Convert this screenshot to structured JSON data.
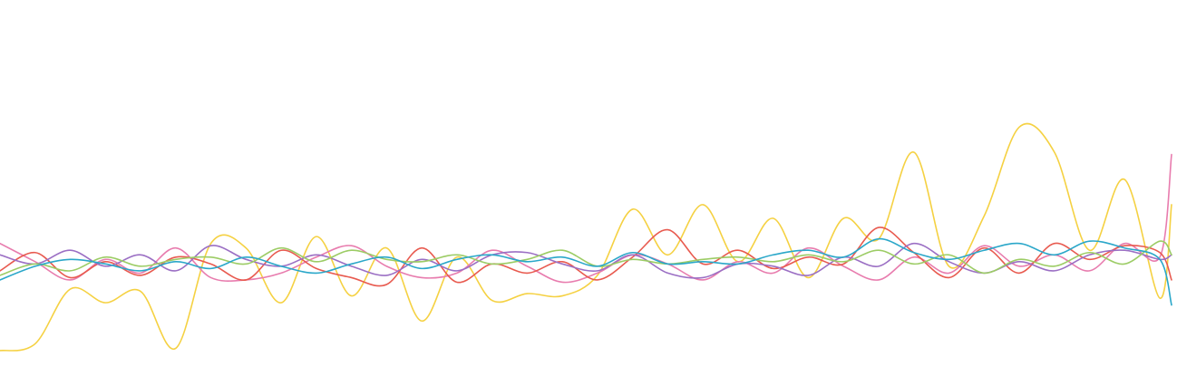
{
  "chart_data": {
    "type": "line",
    "title": "",
    "xlabel": "",
    "ylabel": "",
    "grid": false,
    "legend": "none",
    "xlim": [
      0,
      100
    ],
    "ylim": [
      -2,
      10
    ],
    "x": [
      0,
      3,
      6,
      9,
      12,
      15,
      18,
      21,
      24,
      27,
      30,
      33,
      36,
      39,
      42,
      45,
      48,
      51,
      54,
      57,
      60,
      63,
      66,
      69,
      72,
      75,
      78,
      81,
      84,
      87,
      90,
      93,
      96,
      99,
      100
    ],
    "series": [
      {
        "color": "#f5d142",
        "values": [
          -1.8,
          -1.5,
          0.9,
          0.3,
          0.8,
          -1.7,
          2.9,
          2.7,
          0.3,
          3.2,
          0.6,
          2.7,
          -0.5,
          2.3,
          0.4,
          0.7,
          0.6,
          1.5,
          4.4,
          2.4,
          4.6,
          2.1,
          4.0,
          1.4,
          4.0,
          3.1,
          6.9,
          1.9,
          4.1,
          8.0,
          6.9,
          2.6,
          5.7,
          0.5,
          4.6
        ]
      },
      {
        "color": "#e87cae",
        "values": [
          2.9,
          2.1,
          1.3,
          2.2,
          1.6,
          2.7,
          1.4,
          1.3,
          1.6,
          2.3,
          2.8,
          1.9,
          1.4,
          1.6,
          2.6,
          1.9,
          1.2,
          1.6,
          2.4,
          2.0,
          1.3,
          2.1,
          1.6,
          2.7,
          1.9,
          1.3,
          2.3,
          1.6,
          2.8,
          1.9,
          2.4,
          1.7,
          2.9,
          2.3,
          6.8
        ]
      },
      {
        "color": "#e85a4f",
        "values": [
          1.7,
          2.5,
          1.4,
          2.1,
          1.5,
          2.3,
          2.0,
          1.3,
          2.6,
          1.8,
          1.4,
          1.1,
          2.7,
          1.2,
          2.0,
          1.6,
          2.1,
          1.3,
          2.3,
          3.5,
          2.0,
          2.6,
          1.8,
          2.3,
          2.0,
          3.6,
          2.5,
          1.4,
          2.7,
          1.6,
          2.9,
          2.2,
          2.8,
          2.5,
          1.3
        ]
      },
      {
        "color": "#9b6fc4",
        "values": [
          2.4,
          2.0,
          2.6,
          1.9,
          2.4,
          1.7,
          2.8,
          2.2,
          1.9,
          2.4,
          1.9,
          1.5,
          2.2,
          1.7,
          2.4,
          2.5,
          2.0,
          1.7,
          2.4,
          1.6,
          1.4,
          2.0,
          1.9,
          1.5,
          2.3,
          1.9,
          2.9,
          2.1,
          1.6,
          2.1,
          1.7,
          2.4,
          2.6,
          2.2,
          2.4
        ]
      },
      {
        "color": "#9ccc65",
        "values": [
          1.5,
          2.0,
          1.7,
          2.3,
          1.9,
          2.2,
          2.3,
          2.0,
          2.7,
          2.1,
          2.6,
          2.2,
          2.1,
          2.4,
          2.0,
          2.2,
          2.6,
          1.9,
          2.2,
          2.0,
          2.2,
          2.3,
          2.1,
          2.4,
          2.1,
          2.6,
          2.0,
          2.4,
          1.6,
          2.2,
          1.9,
          2.5,
          2.0,
          3.0,
          2.4
        ]
      },
      {
        "color": "#2aa7c9",
        "values": [
          1.3,
          1.9,
          2.2,
          2.0,
          1.7,
          2.1,
          1.8,
          2.3,
          1.9,
          1.6,
          2.0,
          2.3,
          1.8,
          2.2,
          2.4,
          2.1,
          2.3,
          1.9,
          2.5,
          2.0,
          2.1,
          2.0,
          2.4,
          2.6,
          2.3,
          3.1,
          2.5,
          2.2,
          2.6,
          2.9,
          2.4,
          3.0,
          2.7,
          2.2,
          0.2
        ]
      }
    ]
  }
}
